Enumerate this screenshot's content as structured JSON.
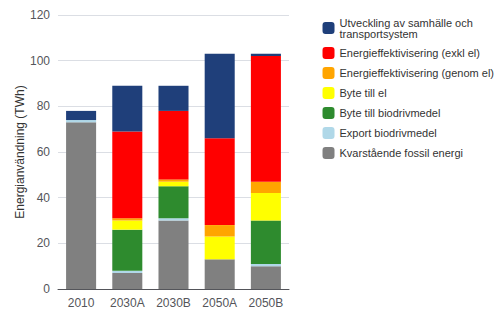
{
  "chart_data": {
    "type": "bar",
    "stacked": true,
    "categories": [
      "2010",
      "2030A",
      "2030B",
      "2050A",
      "2050B"
    ],
    "series": [
      {
        "name": "Kvarstående fossil energi",
        "color": "#808080",
        "values": [
          73,
          7,
          30,
          13,
          10
        ]
      },
      {
        "name": "Export biodrivmedel",
        "color": "#b0d8e8",
        "values": [
          1,
          1,
          1,
          0,
          1
        ]
      },
      {
        "name": "Byte till biodrivmedel",
        "color": "#2e8b2e",
        "values": [
          0,
          18,
          14,
          0,
          19
        ]
      },
      {
        "name": "Byte till el",
        "color": "#FFFF00",
        "values": [
          0,
          4,
          2,
          10,
          12
        ]
      },
      {
        "name": "Energieffektivisering (genom el)",
        "color": "#FFA500",
        "values": [
          0,
          1,
          1,
          5,
          5
        ]
      },
      {
        "name": "Energieffektivisering (exkl el)",
        "color": "#FF0000",
        "values": [
          0,
          38,
          30,
          38,
          55
        ]
      },
      {
        "name": "Utveckling av samhälle och\ntransportsystem",
        "color": "#1F3F7A",
        "values": [
          4,
          20,
          11,
          37,
          1
        ]
      }
    ],
    "ylabel": "Energianvändning (TWh)",
    "ylim": [
      0,
      120
    ],
    "yticks": [
      0,
      20,
      40,
      60,
      80,
      100,
      120
    ],
    "grid": true,
    "legend": "right"
  }
}
